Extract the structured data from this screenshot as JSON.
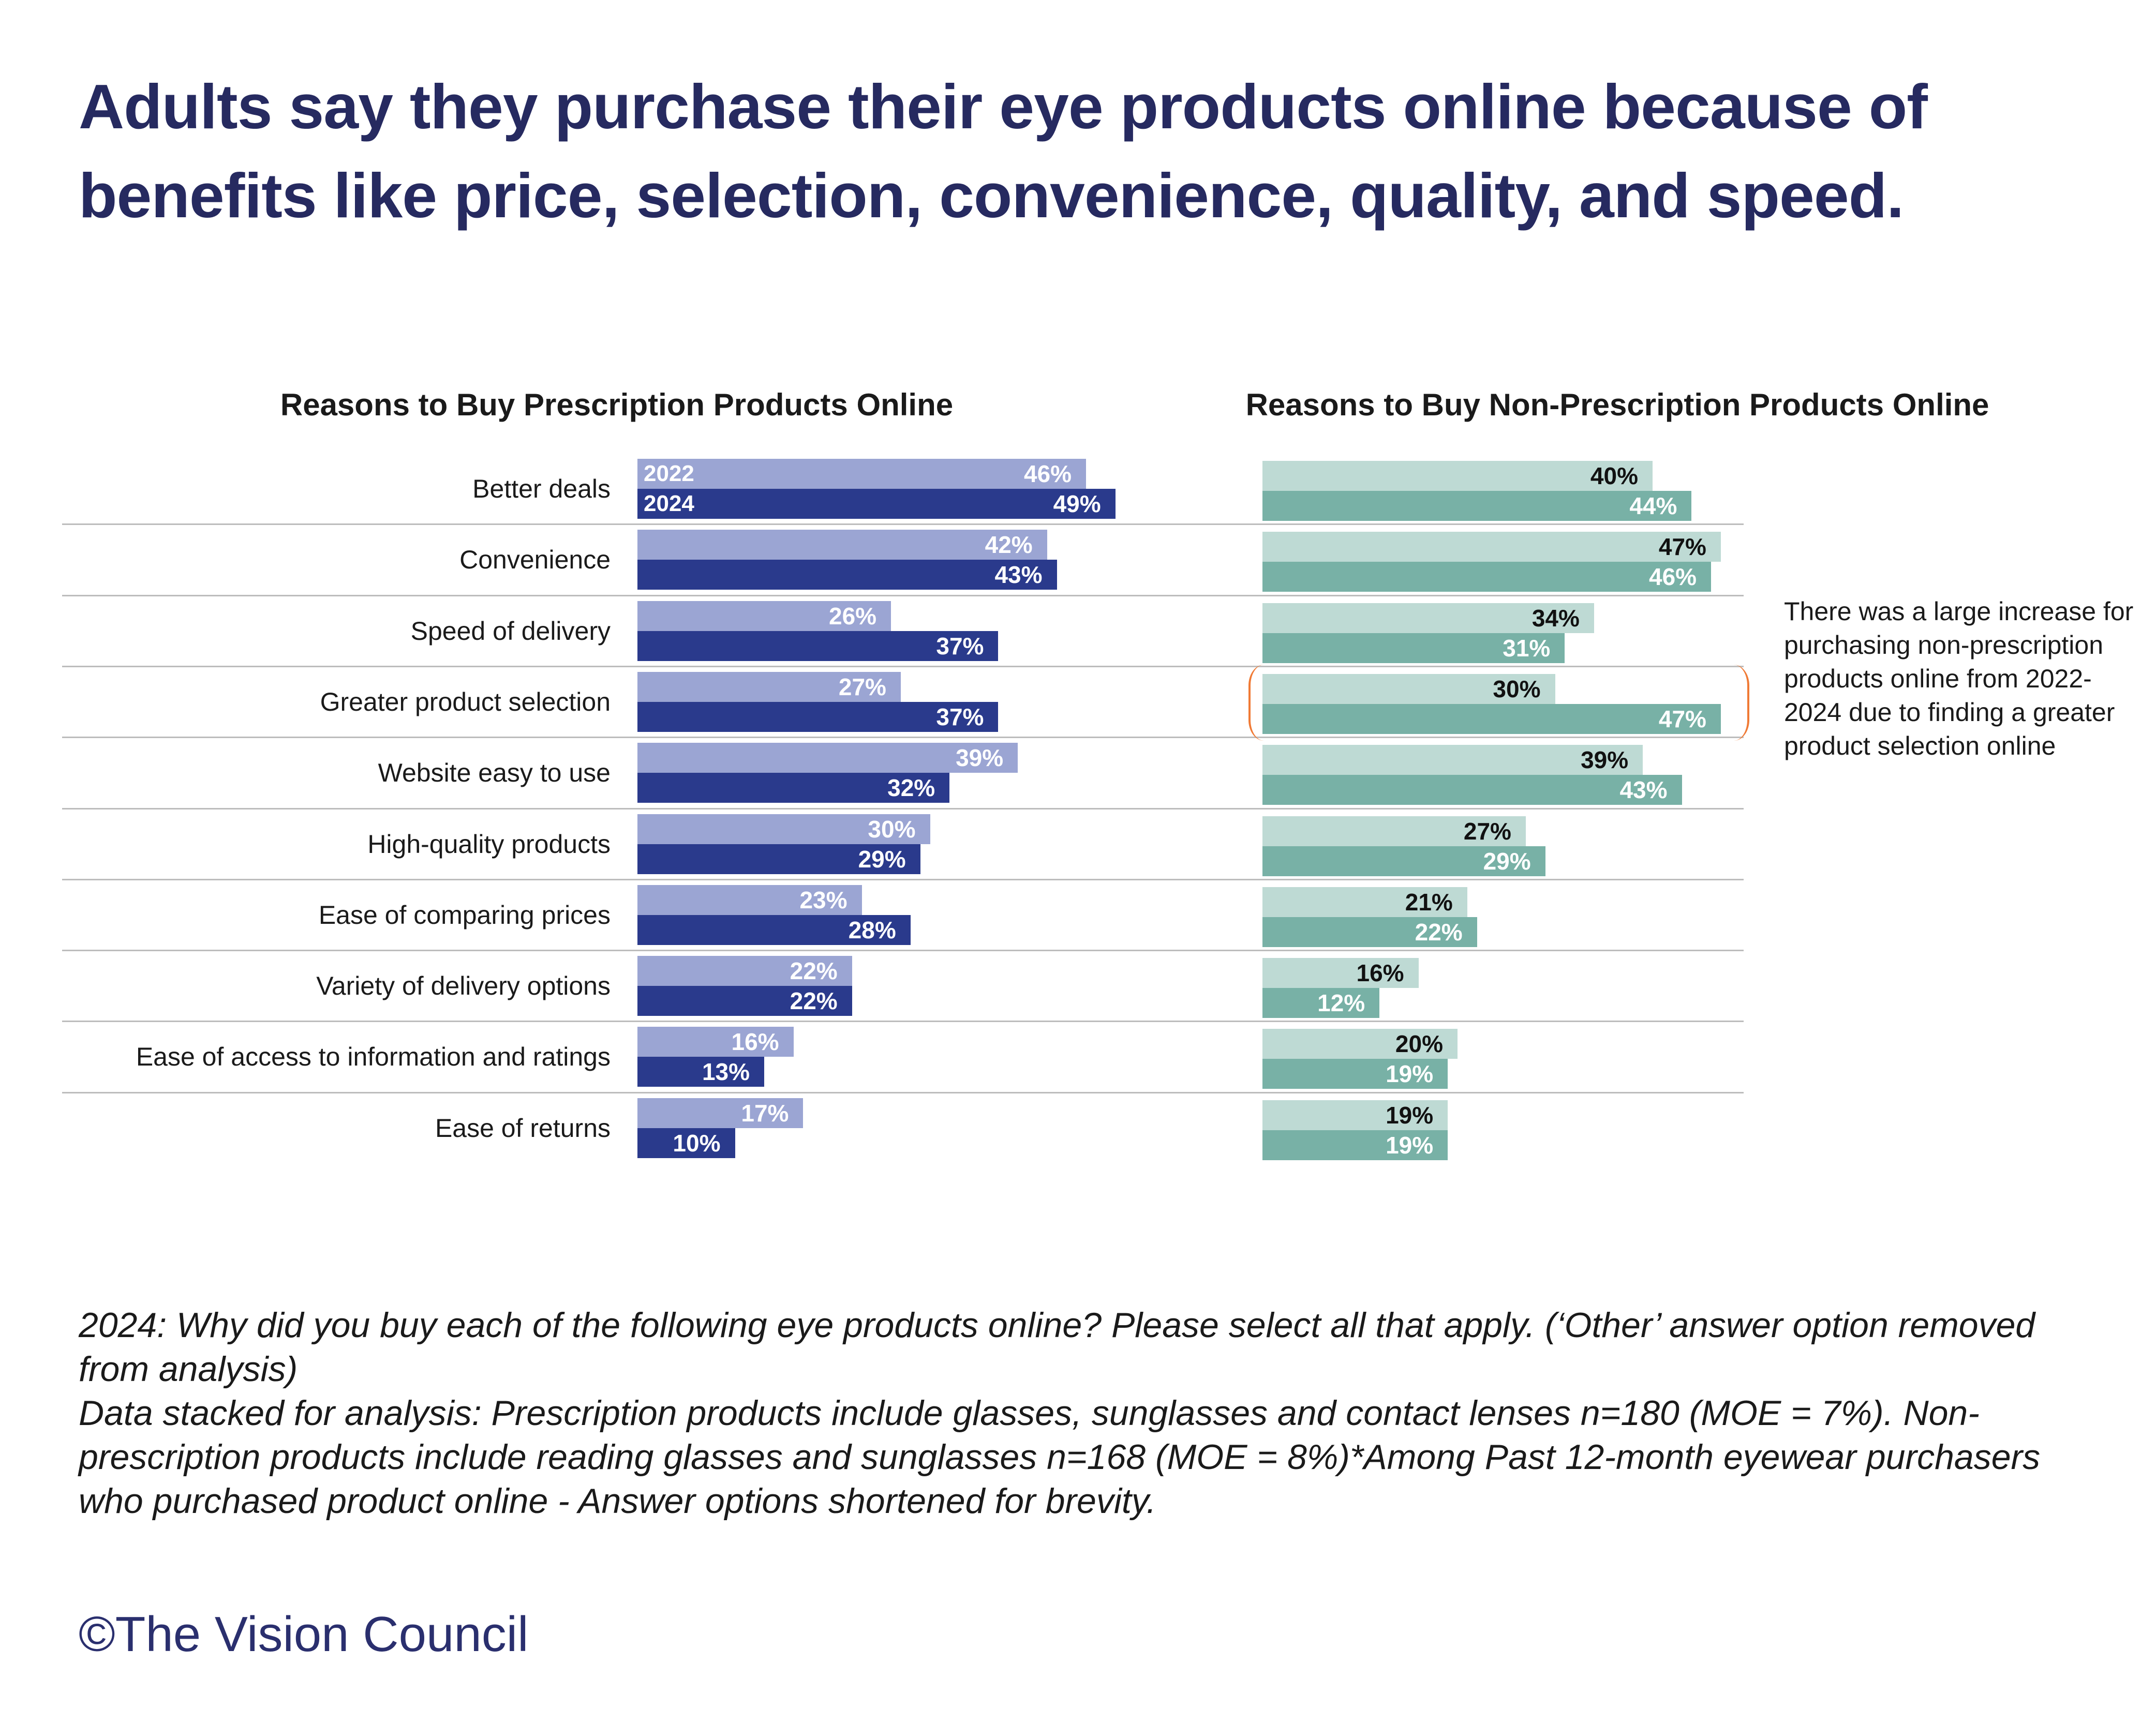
{
  "title": "Adults say they purchase their eye products online because of benefits like price, selection, convenience, quality, and speed.",
  "colors": {
    "p2022": "#9ba5d3",
    "p2024": "#2a3a8c",
    "n2022": "#bedad4",
    "n2024": "#78b1a6",
    "accent": "#f07a35"
  },
  "chart_data": [
    {
      "type": "bar",
      "orientation": "horizontal",
      "title": "Reasons to Buy Prescription Products Online",
      "categories": [
        "Better deals",
        "Convenience",
        "Speed of delivery",
        "Greater product selection",
        "Website easy to use",
        "High-quality products",
        "Ease of comparing prices",
        "Variety of delivery options",
        "Ease of access to information and ratings",
        "Ease of returns"
      ],
      "series": [
        {
          "name": "2022",
          "values": [
            46,
            42,
            26,
            27,
            39,
            30,
            23,
            22,
            16,
            17
          ]
        },
        {
          "name": "2024",
          "values": [
            49,
            43,
            37,
            37,
            32,
            29,
            28,
            22,
            13,
            10
          ]
        }
      ],
      "unit": "%"
    },
    {
      "type": "bar",
      "orientation": "horizontal",
      "title": "Reasons to Buy Non-Prescription Products Online",
      "categories": [
        "Better deals",
        "Convenience",
        "Speed of delivery",
        "Greater product selection",
        "Website easy to use",
        "High-quality products",
        "Ease of comparing prices",
        "Variety of delivery options",
        "Ease of access to information and ratings",
        "Ease of returns"
      ],
      "series": [
        {
          "name": "2022",
          "values": [
            40,
            47,
            34,
            30,
            39,
            27,
            21,
            16,
            20,
            19
          ]
        },
        {
          "name": "2024",
          "values": [
            44,
            46,
            31,
            47,
            43,
            29,
            22,
            12,
            19,
            19
          ]
        }
      ],
      "unit": "%",
      "annotation": "There was a large increase for purchasing non-prescription products online from 2022-2024 due to finding a greater product selection online"
    }
  ],
  "footnote": [
    "2024: Why did you buy each of the following eye products online?  Please select all that apply. (‘Other’ answer option removed from analysis)",
    "Data stacked for analysis: Prescription products include glasses, sunglasses and contact lenses n=180 (MOE = 7%). Non-prescription products include reading glasses and sunglasses n=168 (MOE = 8%)*Among Past 12-month eyewear purchasers who purchased product online - Answer options shortened for brevity."
  ],
  "logo": "©The Vision Council"
}
